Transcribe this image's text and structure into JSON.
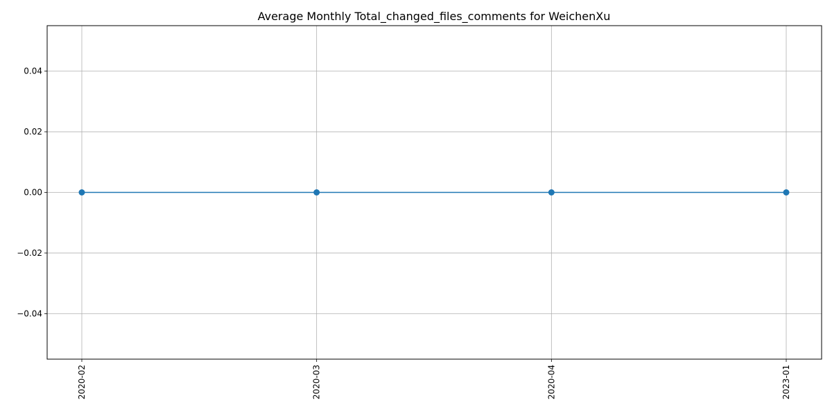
{
  "chart_data": {
    "type": "line",
    "title": "Average Monthly Total_changed_files_comments for WeichenXu",
    "xlabel": "",
    "ylabel": "",
    "categories": [
      "2020-02",
      "2020-03",
      "2020-04",
      "2023-01"
    ],
    "series": [
      {
        "values": [
          0.0,
          0.0,
          0.0,
          0.0
        ],
        "color": "#1f77b4",
        "marker": "circle"
      }
    ],
    "ylim": [
      -0.055,
      0.055
    ],
    "yticks": [
      -0.04,
      -0.02,
      0.0,
      0.02,
      0.04
    ],
    "ytick_labels": [
      "−0.04",
      "−0.02",
      "0.00",
      "0.02",
      "0.04"
    ],
    "grid": true,
    "x_tick_rotation": "vertical"
  }
}
